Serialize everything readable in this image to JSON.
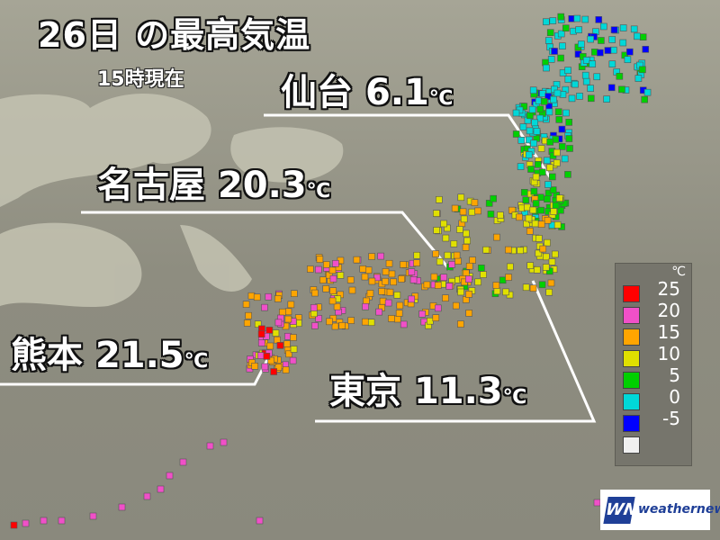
{
  "title": "26日 の最高気温",
  "subtitle": "15時現在",
  "callouts": [
    {
      "city": "仙台",
      "value": "6.1",
      "unit": "℃"
    },
    {
      "city": "名古屋",
      "value": "20.3",
      "unit": "℃"
    },
    {
      "city": "熊本",
      "value": "21.5",
      "unit": "℃"
    },
    {
      "city": "東京",
      "value": "11.3",
      "unit": "℃"
    }
  ],
  "legend": {
    "unit": "℃",
    "items": [
      {
        "label": "25",
        "color": "#ff0000"
      },
      {
        "label": "20",
        "color": "#f050c8"
      },
      {
        "label": "15",
        "color": "#ffa500"
      },
      {
        "label": "10",
        "color": "#e0e000"
      },
      {
        "label": "5",
        "color": "#00d000"
      },
      {
        "label": "0",
        "color": "#00d8d8"
      },
      {
        "label": "-5",
        "color": "#0000ff"
      },
      {
        "label": "",
        "color": "#f0f0f0"
      }
    ]
  },
  "logo": {
    "mark": "WN",
    "text": "weathernews"
  },
  "colors": {
    "land": "#c9c8b6",
    "sea": "#99988a"
  }
}
